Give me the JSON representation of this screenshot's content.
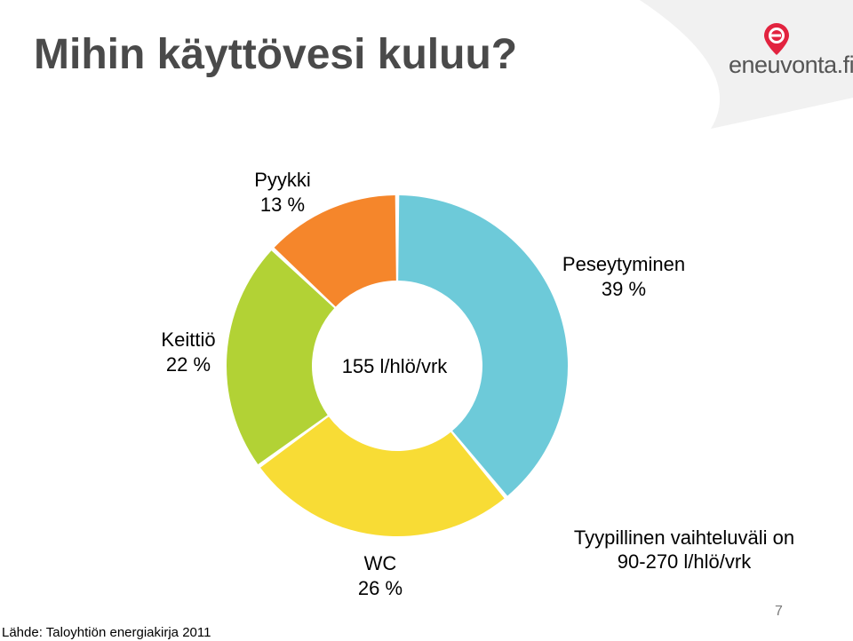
{
  "title": "Mihin käyttövesi kuluu?",
  "logo": {
    "text": "eneuvonta.fi",
    "icon": "e-location-pin-icon",
    "color": "#e2233f"
  },
  "chart_data": {
    "type": "pie",
    "donut": true,
    "center_label": "155 l/hlö/vrk",
    "slices": [
      {
        "label": "Peseytyminen",
        "value": 39,
        "value_label": "39 %",
        "color": "#6dcad9"
      },
      {
        "label": "WC",
        "value": 26,
        "value_label": "26 %",
        "color": "#f8dc35"
      },
      {
        "label": "Keittiö",
        "value": 22,
        "value_label": "22 %",
        "color": "#b2d235"
      },
      {
        "label": "Pyykki",
        "value": 13,
        "value_label": "13 %",
        "color": "#f5862b"
      }
    ]
  },
  "note": {
    "line1": "Tyypillinen vaihteluväli on",
    "line2": "90-270 l/hlö/vrk"
  },
  "source": "Lähde: Taloyhtiön energiakirja 2011",
  "page_number": "7"
}
